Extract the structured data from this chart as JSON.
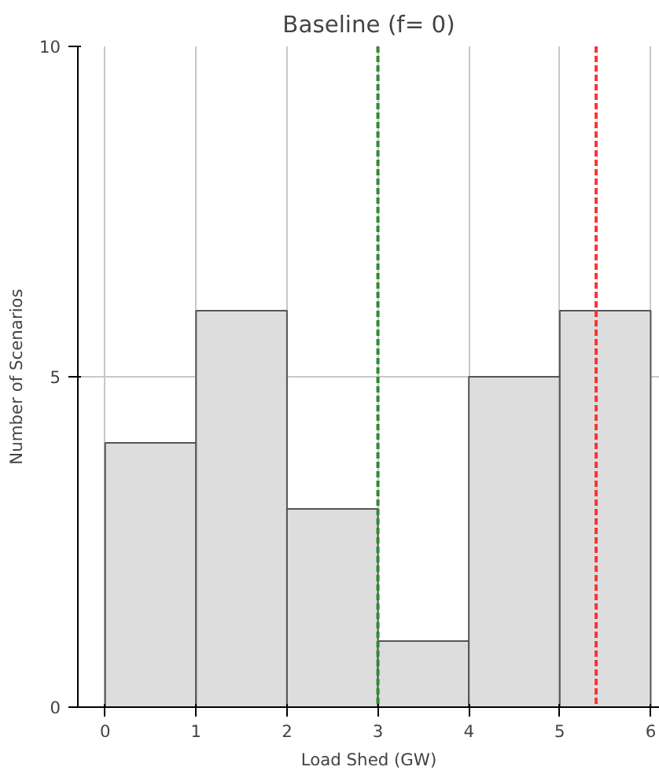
{
  "chart_data": {
    "type": "histogram",
    "title": "Baseline (f= 0)",
    "xlabel": "Load Shed (GW)",
    "ylabel": "Number of Scenarios",
    "bins": [
      0,
      1,
      2,
      3,
      4,
      5,
      6
    ],
    "values": [
      4,
      6,
      3,
      1,
      5,
      6
    ],
    "color": "#dddddd",
    "xlim": [
      -0.3,
      6.1
    ],
    "xticks": [
      0,
      1,
      2,
      3,
      4,
      5,
      6
    ],
    "ylim": [
      0,
      10
    ],
    "yticks": [
      0,
      5,
      10
    ],
    "grid": true,
    "ref_lines": [
      {
        "axis": "x",
        "value": 3,
        "color": "#2e8b2e",
        "line_style": "dashed"
      },
      {
        "axis": "x",
        "value": 5.4,
        "color": "#ff3333",
        "line_style": "dashed"
      }
    ]
  }
}
